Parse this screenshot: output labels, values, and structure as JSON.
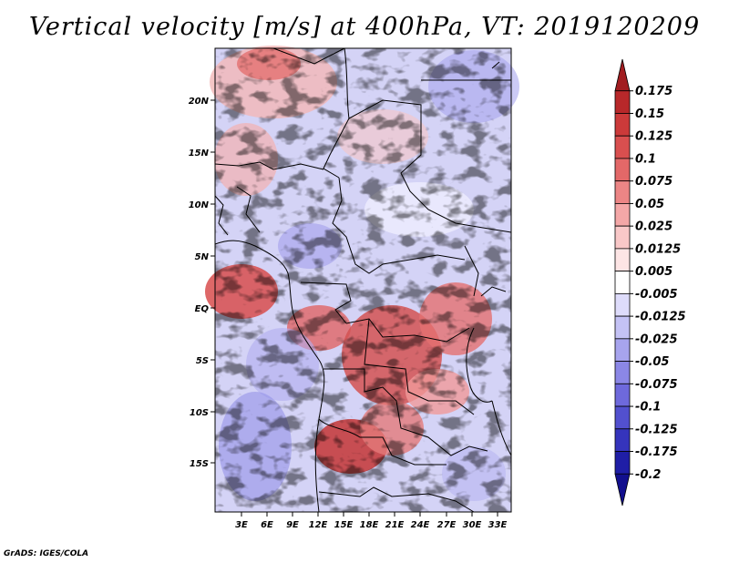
{
  "title": "Vertical velocity [m/s] at 400hPa, VT: 2019120209",
  "credit": "GrADS: IGES/COLA",
  "map": {
    "lat_labels": [
      "20N",
      "15N",
      "10N",
      "5N",
      "EQ",
      "5S",
      "10S",
      "15S"
    ],
    "lon_labels": [
      "3E",
      "6E",
      "9E",
      "12E",
      "15E",
      "18E",
      "21E",
      "24E",
      "27E",
      "30E",
      "33E"
    ]
  },
  "colorbar": {
    "levels": [
      "0.175",
      "0.15",
      "0.125",
      "0.1",
      "0.075",
      "0.05",
      "0.025",
      "0.0125",
      "0.005",
      "-0.005",
      "-0.0125",
      "-0.025",
      "-0.05",
      "-0.075",
      "-0.1",
      "-0.125",
      "-0.175",
      "-0.2"
    ],
    "colors": [
      "#a11d20",
      "#b8282a",
      "#cc3a3a",
      "#d94f4f",
      "#e36868",
      "#ec8585",
      "#f4a7a7",
      "#f9c8c8",
      "#fde5e5",
      "#ffffff",
      "#dedcfb",
      "#c4c2f5",
      "#a7a4ee",
      "#8b87e6",
      "#6e69dc",
      "#5250cf",
      "#3534bc",
      "#1f1ea6",
      "#120f8e"
    ]
  }
}
